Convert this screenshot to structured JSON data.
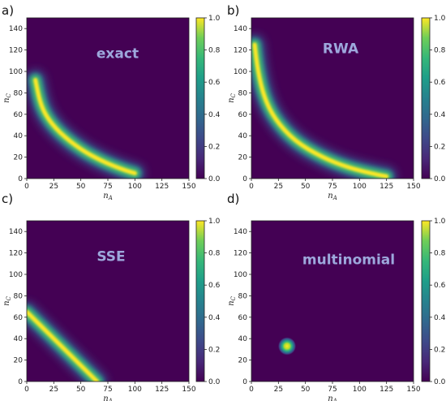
{
  "colors": {
    "colormap": "viridis",
    "overlay_text": "#9da8dc",
    "background": "#440154"
  },
  "chart_data": [
    {
      "type": "heatmap",
      "panel_label": "a)",
      "overlay_label": "exact",
      "xlabel": "n_A",
      "ylabel": "n_C",
      "xlim": [
        0,
        150
      ],
      "ylim": [
        0,
        150
      ],
      "xticks": [
        0,
        25,
        50,
        75,
        100,
        125,
        150
      ],
      "yticks": [
        0,
        20,
        40,
        60,
        80,
        100,
        120,
        140
      ],
      "colorbar_ticks": [
        "0.0",
        "0.2",
        "0.4",
        "0.6",
        "0.8",
        "1.0"
      ],
      "grid": false,
      "shape": "hyperbolic band",
      "ridge": [
        [
          8,
          92
        ],
        [
          12,
          72
        ],
        [
          18,
          58
        ],
        [
          30,
          43
        ],
        [
          50,
          27
        ],
        [
          70,
          16
        ],
        [
          90,
          8
        ],
        [
          100,
          5
        ]
      ],
      "peak_region": [
        [
          15,
          60
        ],
        [
          40,
          35
        ]
      ]
    },
    {
      "type": "heatmap",
      "panel_label": "b)",
      "overlay_label": "RWA",
      "xlabel": "n_A",
      "ylabel": "n_C",
      "xlim": [
        0,
        150
      ],
      "ylim": [
        0,
        150
      ],
      "xticks": [
        0,
        25,
        50,
        75,
        100,
        125,
        150
      ],
      "yticks": [
        0,
        20,
        40,
        60,
        80,
        100,
        120,
        140
      ],
      "colorbar_ticks": [
        "0.0",
        "0.2",
        "0.4",
        "0.6",
        "0.8",
        "1.0"
      ],
      "grid": false,
      "shape": "hyperbolic band",
      "ridge": [
        [
          3,
          125
        ],
        [
          6,
          100
        ],
        [
          12,
          75
        ],
        [
          22,
          55
        ],
        [
          40,
          35
        ],
        [
          65,
          20
        ],
        [
          90,
          10
        ],
        [
          115,
          4
        ],
        [
          125,
          2
        ]
      ],
      "peak_region": [
        [
          5,
          105
        ],
        [
          30,
          45
        ]
      ]
    },
    {
      "type": "heatmap",
      "panel_label": "c)",
      "overlay_label": "SSE",
      "xlabel": "n_A",
      "ylabel": "n_C",
      "xlim": [
        0,
        150
      ],
      "ylim": [
        0,
        150
      ],
      "xticks": [
        0,
        25,
        50,
        75,
        100,
        125,
        150
      ],
      "yticks": [
        0,
        20,
        40,
        60,
        80,
        100,
        120,
        140
      ],
      "colorbar_ticks": [
        "0.0",
        "0.2",
        "0.4",
        "0.6",
        "0.8",
        "1.0"
      ],
      "grid": false,
      "shape": "linear band",
      "ridge": [
        [
          0,
          65
        ],
        [
          65,
          0
        ]
      ],
      "peak_region": [
        [
          5,
          60
        ],
        [
          45,
          20
        ]
      ]
    },
    {
      "type": "heatmap",
      "panel_label": "d)",
      "overlay_label": "multinomial",
      "xlabel": "n_A",
      "ylabel": "n_C",
      "xlim": [
        0,
        150
      ],
      "ylim": [
        0,
        150
      ],
      "xticks": [
        0,
        25,
        50,
        75,
        100,
        125,
        150
      ],
      "yticks": [
        0,
        20,
        40,
        60,
        80,
        100,
        120,
        140
      ],
      "colorbar_ticks": [
        "0.0",
        "0.2",
        "0.4",
        "0.6",
        "0.8",
        "1.0"
      ],
      "grid": false,
      "shape": "gaussian spot",
      "center": [
        33,
        33
      ],
      "peak_region": [
        [
          33,
          33
        ],
        [
          33,
          33
        ]
      ]
    }
  ]
}
